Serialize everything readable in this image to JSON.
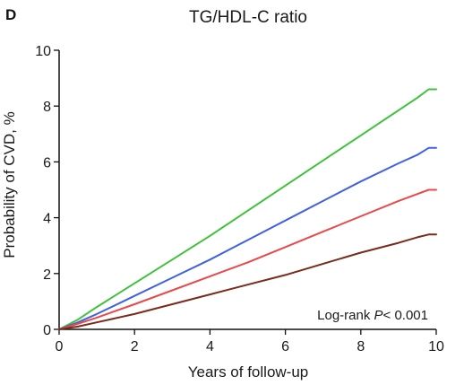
{
  "chart_data": {
    "type": "line",
    "panel_label": "D",
    "title": "TG/HDL-C ratio",
    "xlabel": "Years of follow-up",
    "ylabel": "Probability of CVD, %",
    "xlim": [
      0,
      10
    ],
    "ylim": [
      0,
      10
    ],
    "xticks": [
      0,
      2,
      4,
      6,
      8,
      10
    ],
    "yticks": [
      0,
      2,
      4,
      6,
      8,
      10
    ],
    "grid": false,
    "annotation": {
      "prefix": "Log-rank ",
      "italic": "P",
      "suffix": "< 0.001"
    },
    "x": [
      0,
      0.5,
      1,
      2,
      3,
      4,
      5,
      6,
      7,
      8,
      9,
      9.5,
      9.8,
      10
    ],
    "series": [
      {
        "color": "#3fc13a",
        "values": [
          0,
          0.35,
          0.8,
          1.65,
          2.5,
          3.35,
          4.25,
          5.15,
          6.05,
          6.95,
          7.85,
          8.3,
          8.6,
          8.6
        ]
      },
      {
        "color": "#4062e0",
        "values": [
          0,
          0.25,
          0.55,
          1.2,
          1.85,
          2.5,
          3.2,
          3.9,
          4.6,
          5.3,
          5.95,
          6.25,
          6.5,
          6.5
        ]
      },
      {
        "color": "#e84a4a",
        "values": [
          0,
          0.2,
          0.42,
          0.9,
          1.4,
          1.9,
          2.4,
          2.95,
          3.5,
          4.05,
          4.6,
          4.85,
          5.0,
          5.0
        ]
      },
      {
        "color": "#7b2a1c",
        "values": [
          0,
          0.1,
          0.25,
          0.55,
          0.9,
          1.25,
          1.6,
          1.95,
          2.35,
          2.75,
          3.1,
          3.3,
          3.4,
          3.4
        ]
      }
    ]
  }
}
